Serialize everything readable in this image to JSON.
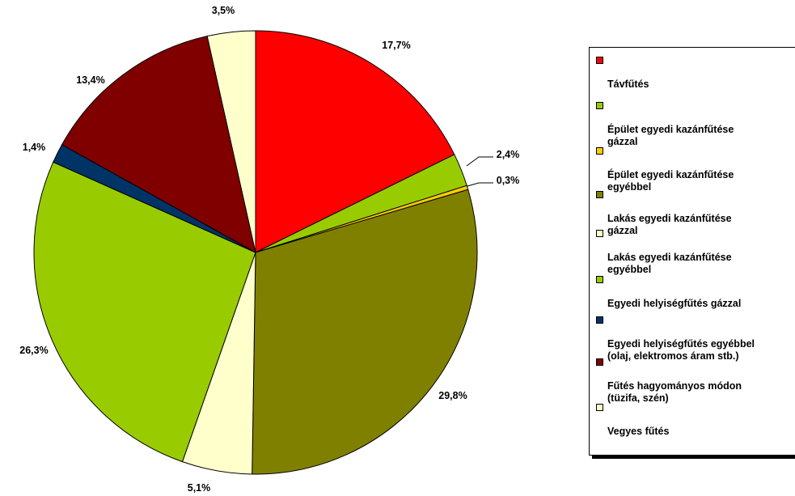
{
  "chart_data": {
    "type": "pie",
    "slices": [
      {
        "label": "Távfűtés",
        "value": 17.7,
        "value_label": "17,7%",
        "color": "#ff0000"
      },
      {
        "label": "Épület egyedi kazánfűtése gázzal",
        "value": 2.4,
        "value_label": "2,4%",
        "color": "#99cc00"
      },
      {
        "label": "Épület egyedi kazánfűtése egyébbel",
        "value": 0.3,
        "value_label": "0,3%",
        "color": "#ffcc00"
      },
      {
        "label": "Lakás egyedi kazánfűtése gázzal",
        "value": 29.8,
        "value_label": "29,8%",
        "color": "#808000"
      },
      {
        "label": "Lakás egyedi kazánfűtése egyébbel",
        "value": 5.1,
        "value_label": "5,1%",
        "color": "#ffffcc"
      },
      {
        "label": "Egyedi helyiségfűtés gázzal",
        "value": 26.3,
        "value_label": "26,3%",
        "color": "#99cc00"
      },
      {
        "label": "Egyedi helyiségfűtés egyébbel (olaj, elektromos áram stb.)",
        "value": 1.4,
        "value_label": "1,4%",
        "color": "#003366"
      },
      {
        "label": "Fűtés hagyományos módon (tüzifa, szén)",
        "value": 13.4,
        "value_label": "13,4%",
        "color": "#800000"
      },
      {
        "label": "Vegyes fűtés",
        "value": 3.5,
        "value_label": "3,5%",
        "color": "#ffffcc"
      }
    ],
    "legend_position": "right"
  },
  "legend": {
    "items": [
      {
        "label": "Távfűtés",
        "color": "#ff0000"
      },
      {
        "label": " Épület egyedi kazánfűtése\n gázzal",
        "color": "#99cc00"
      },
      {
        "label": " Épület egyedi kazánfűtése\n egyébbel",
        "color": "#ffcc00"
      },
      {
        "label": " Lakás egyedi kazánfűtése\n gázzal",
        "color": "#808000"
      },
      {
        "label": " Lakás egyedi kazánfűtése\n egyébbel",
        "color": "#ffffcc"
      },
      {
        "label": " Egyedi helyiségfűtés gázzal",
        "color": "#99cc00"
      },
      {
        "label": "Egyedi helyiségfűtés egyébbel\n(olaj, elektromos áram stb.)",
        "color": "#003366"
      },
      {
        "label": "Fűtés hagyományos módon\n(tüzifa, szén)",
        "color": "#800000"
      },
      {
        "label": "Vegyes fűtés",
        "color": "#ffffcc"
      }
    ]
  }
}
